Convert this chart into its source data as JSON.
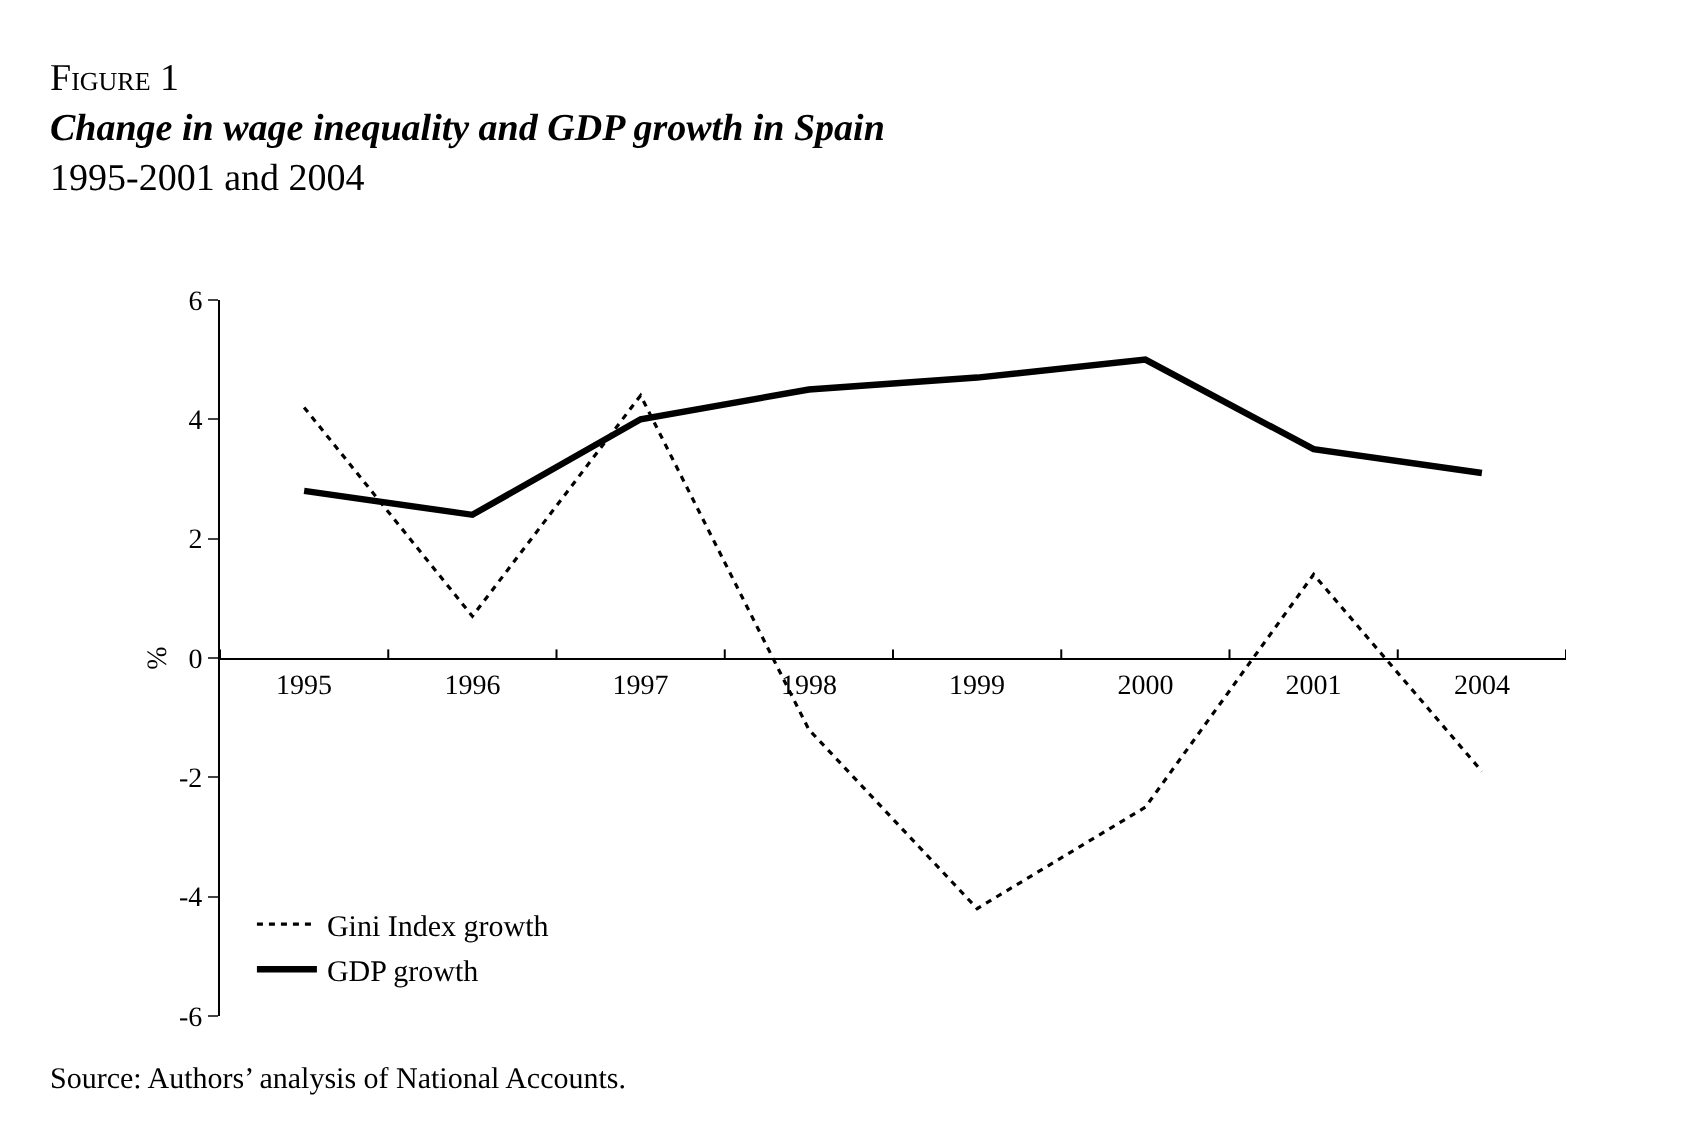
{
  "chart_data": {
    "type": "line",
    "title": "Change in wage inequality and GDP growth in Spain",
    "subtitle": "1995-2001 and 2004",
    "ylabel": "%",
    "annotations": [
      "Figure 1",
      "Source: Authors’ analysis of National Accounts."
    ],
    "categories": [
      "1995",
      "1996",
      "1997",
      "1998",
      "1999",
      "2000",
      "2001",
      "2004"
    ],
    "series": [
      {
        "name": "Gini Index growth",
        "color": "#000000",
        "line_style": "dotted",
        "values": [
          4.2,
          0.7,
          4.4,
          -1.2,
          -4.2,
          -2.5,
          1.4,
          -1.9
        ]
      },
      {
        "name": "GDP growth",
        "color": "#000000",
        "line_style": "solid",
        "values": [
          2.8,
          2.4,
          4.0,
          4.5,
          4.7,
          5.0,
          3.5,
          3.1
        ]
      }
    ],
    "ylim": [
      -6,
      6
    ],
    "yticks": [
      -6,
      -4,
      -2,
      0,
      2,
      4,
      6
    ],
    "legend": "bottom left",
    "marker": "none"
  }
}
